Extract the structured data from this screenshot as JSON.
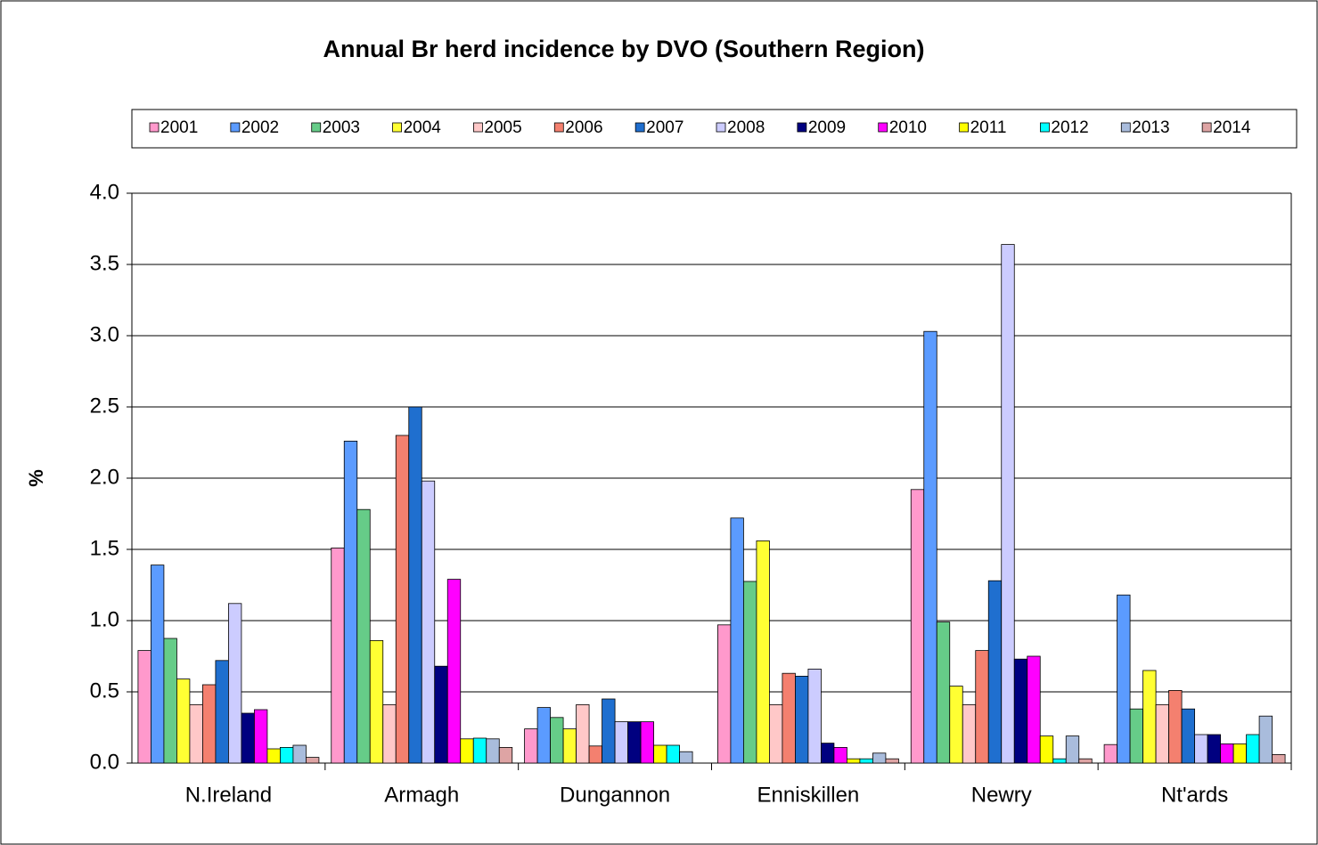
{
  "chart_data": {
    "type": "bar",
    "title": "Annual Br herd incidence by DVO (Southern Region)",
    "y_label": "%",
    "categories": [
      "N.Ireland",
      "Armagh",
      "Dungannon",
      "Enniskillen",
      "Newry",
      "Nt'ards"
    ],
    "series": [
      {
        "name": "2001",
        "color": "#ff99cc",
        "values": [
          0.79,
          1.51,
          0.24,
          0.97,
          1.92,
          0.13
        ]
      },
      {
        "name": "2002",
        "color": "#5b9bff",
        "values": [
          1.39,
          2.26,
          0.39,
          1.72,
          3.03,
          1.18
        ]
      },
      {
        "name": "2003",
        "color": "#66cc88",
        "values": [
          0.875,
          1.78,
          0.32,
          1.275,
          0.99,
          0.38
        ]
      },
      {
        "name": "2004",
        "color": "#ffff33",
        "values": [
          0.59,
          0.86,
          0.24,
          1.56,
          0.54,
          0.65
        ]
      },
      {
        "name": "2005",
        "color": "#ffc8c8",
        "values": [
          0.41,
          0.41,
          0.41,
          0.41,
          0.41,
          0.41
        ]
      },
      {
        "name": "2006",
        "color": "#f4806f",
        "values": [
          0.55,
          2.3,
          0.12,
          0.63,
          0.79,
          0.51
        ]
      },
      {
        "name": "2007",
        "color": "#1f6fcf",
        "values": [
          0.72,
          2.5,
          0.45,
          0.61,
          1.28,
          0.38
        ]
      },
      {
        "name": "2008",
        "color": "#ccccff",
        "values": [
          1.12,
          1.98,
          0.29,
          0.66,
          3.64,
          0.2
        ]
      },
      {
        "name": "2009",
        "color": "#000080",
        "values": [
          0.35,
          0.68,
          0.29,
          0.14,
          0.73,
          0.2
        ]
      },
      {
        "name": "2010",
        "color": "#ff00ff",
        "values": [
          0.375,
          1.29,
          0.29,
          0.11,
          0.75,
          0.135
        ]
      },
      {
        "name": "2011",
        "color": "#ffff00",
        "values": [
          0.1,
          0.17,
          0.125,
          0.03,
          0.19,
          0.135
        ]
      },
      {
        "name": "2012",
        "color": "#00ffff",
        "values": [
          0.11,
          0.175,
          0.125,
          0.03,
          0.03,
          0.2
        ]
      },
      {
        "name": "2013",
        "color": "#a9bcdc",
        "values": [
          0.125,
          0.17,
          0.08,
          0.07,
          0.19,
          0.33
        ]
      },
      {
        "name": "2014",
        "color": "#dea4a4",
        "values": [
          0.04,
          0.11,
          0,
          0.03,
          0.03,
          0.06
        ]
      }
    ],
    "ylim": [
      0,
      4
    ],
    "yticks": [
      {
        "value": 0,
        "label": "0.0"
      },
      {
        "value": 0.5,
        "label": "0.5"
      },
      {
        "value": 1,
        "label": "1.0"
      },
      {
        "value": 1.5,
        "label": "1.5"
      },
      {
        "value": 2,
        "label": "2.0"
      },
      {
        "value": 2.5,
        "label": "2.5"
      },
      {
        "value": 3,
        "label": "3.0"
      },
      {
        "value": 3.5,
        "label": "3.5"
      },
      {
        "value": 4,
        "label": "4.0"
      }
    ],
    "grid": true,
    "legend": "top"
  }
}
